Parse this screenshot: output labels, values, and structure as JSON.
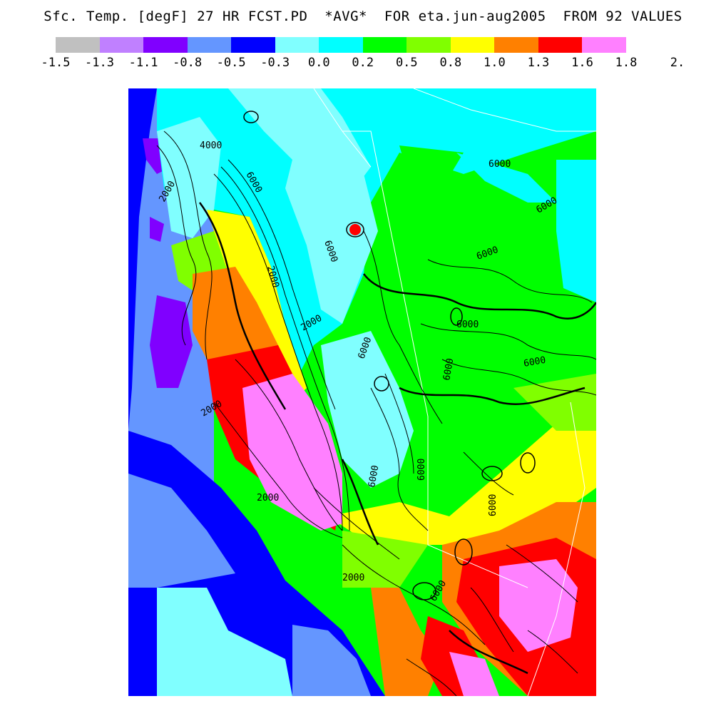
{
  "header": {
    "title": "Sfc. Temp. [degF] 27 HR FCST.PD  *AVG*  FOR eta.jun-aug2005  FROM 92 VALUES"
  },
  "colorbar": {
    "colors": [
      "#c0c0c0",
      "#c080ff",
      "#8000ff",
      "#6496ff",
      "#0000ff",
      "#80ffff",
      "#00ffff",
      "#00ff00",
      "#80ff00",
      "#ffff00",
      "#ff8000",
      "#ff0000",
      "#ff80ff"
    ],
    "labels": [
      "-1.5",
      "-1.3",
      "-1.1",
      "-0.8",
      "-0.5",
      "-0.3",
      "0.0",
      "0.2",
      "0.5",
      "0.8",
      "1.0",
      "1.3",
      "1.6",
      "1.8",
      "2."
    ]
  },
  "map": {
    "contour_labels": [
      "4000",
      "2000",
      "6000",
      "2000",
      "6000",
      "2000",
      "6000",
      "6000",
      "6000",
      "6000",
      "6000",
      "6000",
      "6000",
      "2000",
      "2000",
      "2000",
      "6000",
      "6000",
      "6000",
      "6000"
    ]
  }
}
